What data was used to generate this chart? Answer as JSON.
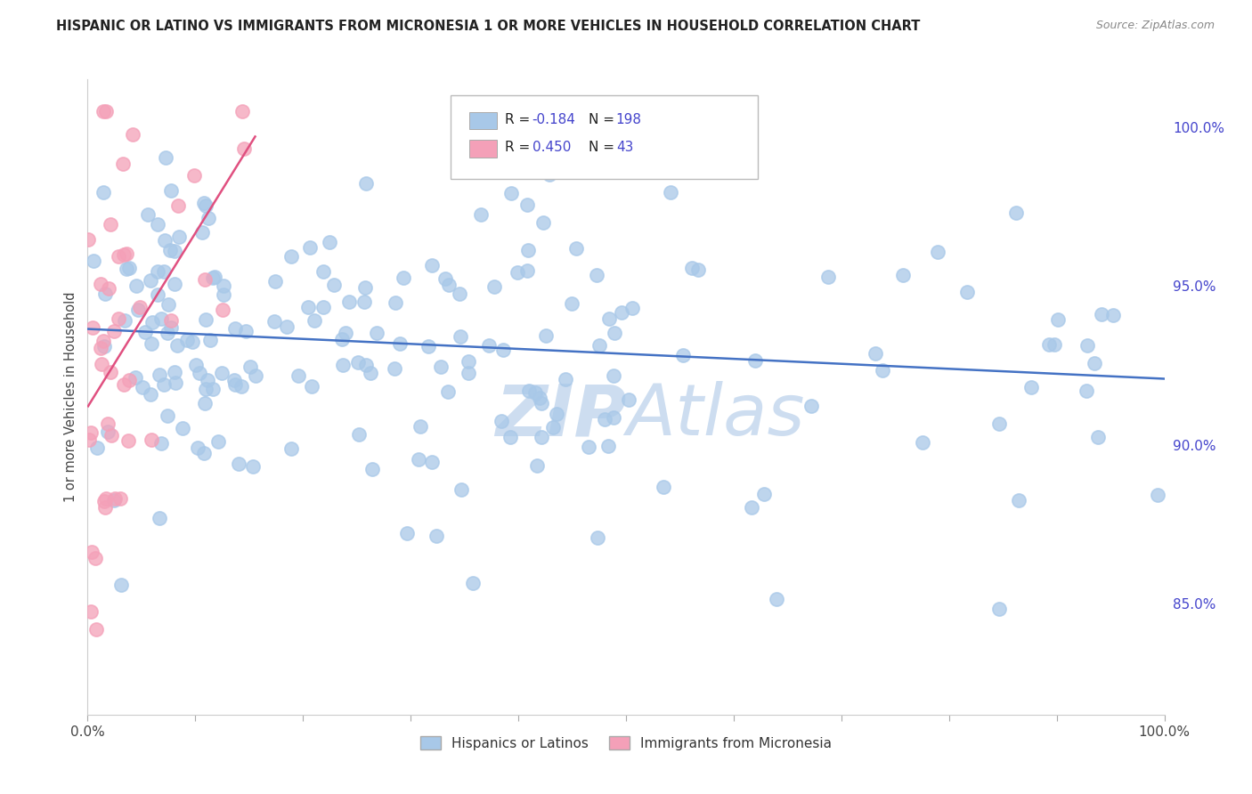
{
  "title": "HISPANIC OR LATINO VS IMMIGRANTS FROM MICRONESIA 1 OR MORE VEHICLES IN HOUSEHOLD CORRELATION CHART",
  "source": "Source: ZipAtlas.com",
  "right_yticks": [
    85.0,
    90.0,
    95.0,
    100.0
  ],
  "xmin": 0.0,
  "xmax": 100.0,
  "ymin": 81.5,
  "ymax": 101.5,
  "blue_R": -0.184,
  "blue_N": 198,
  "pink_R": 0.45,
  "pink_N": 43,
  "blue_color": "#a8c8e8",
  "pink_color": "#f4a0b8",
  "blue_line_color": "#4472c4",
  "pink_line_color": "#e05080",
  "legend_label_blue": "Hispanics or Latinos",
  "legend_label_pink": "Immigrants from Micronesia",
  "watermark": "ZIPAtlas",
  "watermark_color": "#c5d8ee",
  "title_color": "#222222",
  "source_color": "#888888",
  "axis_label_color": "#444444",
  "right_tick_color": "#4444cc",
  "grid_color": "#cccccc",
  "xtick_positions": [
    0,
    10,
    20,
    30,
    40,
    50,
    60,
    70,
    80,
    90,
    100
  ]
}
